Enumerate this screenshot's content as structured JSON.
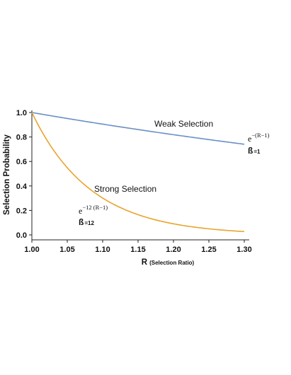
{
  "chart_data": {
    "type": "line",
    "xlim": [
      1.0,
      1.3
    ],
    "ylim": [
      0.0,
      1.0
    ],
    "x_ticks": [
      "1.00",
      "1.05",
      "1.10",
      "1.15",
      "1.20",
      "1.25",
      "1.30"
    ],
    "y_ticks": [
      "0.0",
      "0.2",
      "0.4",
      "0.6",
      "0.8",
      "1.0"
    ],
    "xlabel_main": "R",
    "xlabel_sub": "(Selection Ratio)",
    "ylabel": "Selection Probability",
    "grid": false,
    "series": [
      {
        "name": "Weak Selection",
        "beta": 1,
        "color": "#6b8fc7",
        "formula_base": "e",
        "formula_exp": "−(R−1)",
        "beta_label": "ß",
        "beta_sub": "=1",
        "x": [
          1.0,
          1.05,
          1.1,
          1.15,
          1.2,
          1.25,
          1.3
        ],
        "y": [
          1.0,
          0.951,
          0.905,
          0.861,
          0.819,
          0.779,
          0.741
        ]
      },
      {
        "name": "Strong Selection",
        "beta": 12,
        "color": "#e8a42c",
        "formula_base": "e",
        "formula_exp": "−12 (R−1)",
        "beta_label": "ß",
        "beta_sub": "=12",
        "x": [
          1.0,
          1.05,
          1.1,
          1.15,
          1.2,
          1.25,
          1.3
        ],
        "y": [
          1.0,
          0.549,
          0.301,
          0.165,
          0.091,
          0.05,
          0.027
        ]
      }
    ]
  }
}
